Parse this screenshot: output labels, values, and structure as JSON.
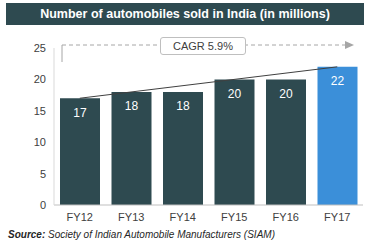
{
  "chart_data": {
    "type": "bar",
    "title": "Number of automobiles sold in India (in millions)",
    "categories": [
      "FY12",
      "FY13",
      "FY14",
      "FY15",
      "FY16",
      "FY17"
    ],
    "values": [
      17,
      18,
      18,
      20,
      20,
      22
    ],
    "colors": [
      "#2e4a50",
      "#2e4a50",
      "#2e4a50",
      "#2e4a50",
      "#2e4a50",
      "#3b8fd9"
    ],
    "ylim": [
      0,
      25
    ],
    "yticks": [
      0,
      5,
      10,
      15,
      20,
      25
    ],
    "grid": false,
    "data_labels": true,
    "annotations": [
      "CAGR 5.9%"
    ],
    "source": "Source: Society of Indian Automobile Manufacturers (SIAM)"
  }
}
